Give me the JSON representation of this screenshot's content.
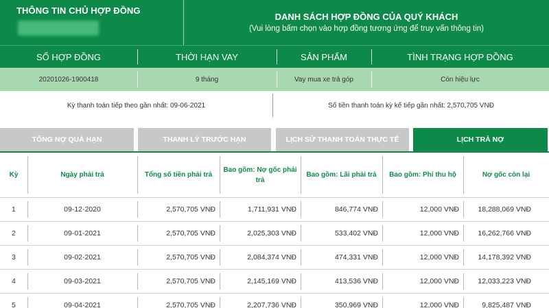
{
  "header": {
    "owner_title": "THÔNG TIN CHỦ HỢP ĐỒNG",
    "list_title": "DANH SÁCH HỢP ĐỒNG CỦA QUÝ KHÁCH",
    "list_subtitle": "(Vui lòng bấm chọn vào hợp đồng tương ứng để truy vấn thông tin)"
  },
  "contract": {
    "columns": [
      "SỐ HỢP ĐỒNG",
      "THỜI HẠN VAY",
      "SẢN PHẨM",
      "TÌNH TRẠNG HỢP ĐỒNG"
    ],
    "values": [
      "20201026-1900418",
      "9 tháng",
      "Vay mua xe trả góp",
      "Còn hiệu lực"
    ]
  },
  "payment_info": {
    "next_due": "Kỳ thanh toán tiếp theo gần nhất: 09-06-2021",
    "next_amount": "Số tiền thanh toán kỳ kế tiếp gần nhất: 2,570,705 VNĐ"
  },
  "tabs": [
    {
      "label": "TỔNG NỢ QUÁ HẠN",
      "active": false
    },
    {
      "label": "THANH LÝ TRƯỚC HẠN",
      "active": false
    },
    {
      "label": "LỊCH SỬ THANH TOÁN THỰC TẾ",
      "active": false
    },
    {
      "label": "LỊCH TRẢ NỢ",
      "active": true
    }
  ],
  "schedule": {
    "headers": [
      "Kỳ",
      "Ngày phải trả",
      "Tổng số tiền phải trả",
      "Bao gồm: Nợ gốc phải trả",
      "Bao gồm: Lãi phải trả",
      "Bao gồm: Phí thu hộ",
      "Nợ gốc còn lại"
    ],
    "rows": [
      [
        "1",
        "09-12-2020",
        "2,570,705 VNĐ",
        "1,711,931 VNĐ",
        "846,774 VNĐ",
        "12,000 VNĐ",
        "18,288,069 VNĐ"
      ],
      [
        "2",
        "09-01-2021",
        "2,570,705 VNĐ",
        "2,025,303 VNĐ",
        "533,402 VNĐ",
        "12,000 VNĐ",
        "16,262,766 VNĐ"
      ],
      [
        "3",
        "09-02-2021",
        "2,570,705 VNĐ",
        "2,084,374 VNĐ",
        "474,331 VNĐ",
        "12,000 VNĐ",
        "14,178,392 VNĐ"
      ],
      [
        "4",
        "09-03-2021",
        "2,570,705 VNĐ",
        "2,145,169 VNĐ",
        "413,536 VNĐ",
        "12,000 VNĐ",
        "12,033,223 VNĐ"
      ],
      [
        "5",
        "09-04-2021",
        "2,570,705 VNĐ",
        "2,207,736 VNĐ",
        "350,969 VNĐ",
        "12,000 VNĐ",
        "9,825,487 VNĐ"
      ]
    ]
  },
  "colors": {
    "brand_green": "#0d8a4a",
    "light_green": "#a8d8b0",
    "tab_inactive": "#c8c8c8"
  }
}
